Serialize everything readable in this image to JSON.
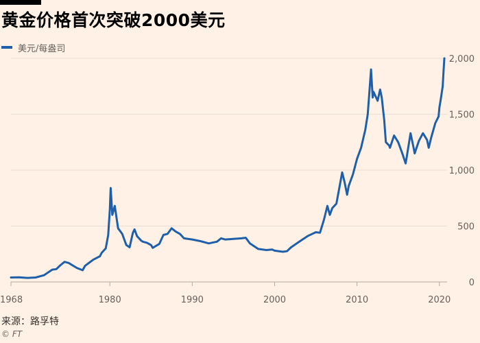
{
  "header": {
    "title": "黄金价格首次突破2000美元"
  },
  "footer": {
    "source": "来源：路孚特",
    "credit": "© FT"
  },
  "colors": {
    "series": "#1f5ea8",
    "grid": "#e9ded3",
    "axis": "#b3aaa2",
    "tick_text": "#66605c",
    "background": "#fff1e5"
  },
  "chart_data": {
    "type": "line",
    "title": "黄金价格首次突破2000美元",
    "xlabel": "",
    "ylabel": "",
    "xlim": [
      1968,
      2020.6
    ],
    "ylim": [
      0,
      2000
    ],
    "x_ticks": [
      1968,
      1980,
      1990,
      2000,
      2010,
      2020
    ],
    "x_tick_labels": [
      "1968",
      "1980",
      "1990",
      "2000",
      "2010",
      "2020"
    ],
    "y_ticks": [
      0,
      500,
      1000,
      1500,
      2000
    ],
    "y_tick_labels": [
      "0",
      "500",
      "1,000",
      "1,500",
      "2,000"
    ],
    "grid": true,
    "legend": {
      "position": "top-left"
    },
    "series": [
      {
        "name": "美元/每盎司",
        "x": [
          1968.0,
          1969.0,
          1970.0,
          1971.0,
          1972.0,
          1973.0,
          1973.5,
          1974.0,
          1974.5,
          1975.0,
          1976.0,
          1976.7,
          1977.0,
          1978.0,
          1978.8,
          1979.0,
          1979.5,
          1979.8,
          1980.0,
          1980.1,
          1980.3,
          1980.6,
          1980.8,
          1981.0,
          1981.5,
          1982.0,
          1982.4,
          1982.8,
          1983.0,
          1983.3,
          1983.8,
          1984.0,
          1984.5,
          1985.0,
          1985.2,
          1986.0,
          1986.5,
          1987.0,
          1987.5,
          1988.0,
          1988.5,
          1989.0,
          1990.0,
          1991.0,
          1992.0,
          1993.0,
          1993.5,
          1994.0,
          1995.0,
          1996.0,
          1996.5,
          1997.0,
          1998.0,
          1999.0,
          1999.7,
          2000.0,
          2001.0,
          2001.5,
          2002.0,
          2003.0,
          2004.0,
          2005.0,
          2005.5,
          2006.0,
          2006.4,
          2006.7,
          2007.0,
          2007.5,
          2008.0,
          2008.2,
          2008.5,
          2008.8,
          2009.0,
          2009.5,
          2010.0,
          2010.5,
          2011.0,
          2011.3,
          2011.6,
          2011.7,
          2011.9,
          2012.0,
          2012.5,
          2012.8,
          2013.0,
          2013.3,
          2013.5,
          2013.9,
          2014.0,
          2014.5,
          2015.0,
          2015.5,
          2015.9,
          2016.0,
          2016.5,
          2016.9,
          2017.0,
          2017.5,
          2018.0,
          2018.5,
          2018.7,
          2019.0,
          2019.5,
          2019.9,
          2020.0,
          2020.2,
          2020.4,
          2020.5,
          2020.6
        ],
        "values": [
          40,
          42,
          36,
          40,
          60,
          110,
          115,
          150,
          180,
          170,
          125,
          105,
          145,
          200,
          230,
          260,
          300,
          420,
          650,
          840,
          600,
          680,
          580,
          480,
          430,
          330,
          310,
          440,
          470,
          410,
          370,
          360,
          350,
          330,
          305,
          340,
          420,
          430,
          480,
          450,
          430,
          390,
          380,
          365,
          345,
          360,
          390,
          380,
          385,
          390,
          395,
          345,
          295,
          285,
          290,
          280,
          270,
          275,
          310,
          360,
          410,
          445,
          440,
          560,
          680,
          600,
          660,
          700,
          900,
          980,
          890,
          780,
          860,
          960,
          1100,
          1200,
          1360,
          1500,
          1800,
          1900,
          1650,
          1700,
          1620,
          1720,
          1650,
          1450,
          1250,
          1220,
          1200,
          1310,
          1250,
          1150,
          1060,
          1100,
          1330,
          1190,
          1150,
          1260,
          1330,
          1270,
          1200,
          1290,
          1420,
          1480,
          1560,
          1650,
          1750,
          1880,
          2000
        ]
      }
    ]
  }
}
